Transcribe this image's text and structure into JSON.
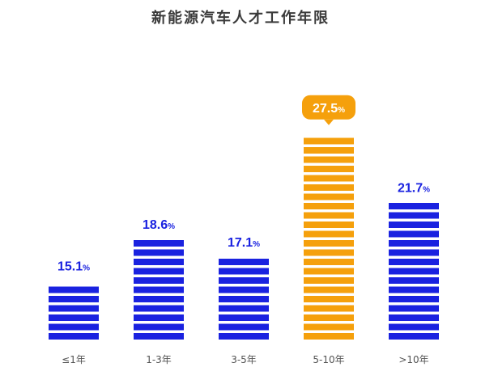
{
  "chart_data": {
    "type": "bar",
    "title": "新能源汽车人才工作年限",
    "categories": [
      "≤1年",
      "1-3年",
      "3-5年",
      "5-10年",
      ">10年"
    ],
    "values": [
      15.1,
      18.6,
      17.1,
      27.5,
      21.7
    ],
    "value_labels": [
      "15.1",
      "18.6",
      "17.1",
      "27.5",
      "21.7"
    ],
    "unit": "%",
    "highlight_index": 3,
    "colors": {
      "bar": "#1a22e0",
      "highlight": "#f5a00c",
      "label": "#1a22e0",
      "highlight_label": "#ffffff"
    },
    "ylim": [
      10,
      28.5
    ],
    "grid": false,
    "legend": "none"
  }
}
